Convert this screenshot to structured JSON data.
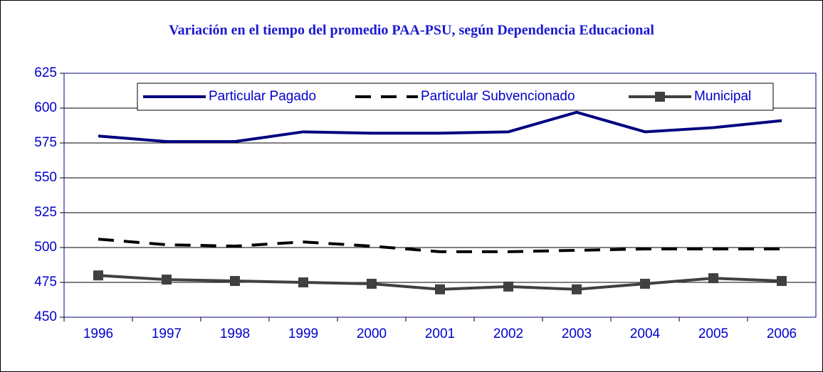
{
  "chart_data": {
    "type": "line",
    "title": "Variación en el tiempo del promedio PAA-PSU, según Dependencia Educacional",
    "categories": [
      "1996",
      "1997",
      "1998",
      "1999",
      "2000",
      "2001",
      "2002",
      "2003",
      "2004",
      "2005",
      "2006"
    ],
    "series": [
      {
        "name": "Particular Pagado",
        "color": "#000080",
        "dash": "solid",
        "marker": "none",
        "values": [
          580,
          576,
          576,
          583,
          582,
          582,
          583,
          597,
          583,
          586,
          591
        ]
      },
      {
        "name": "Particular Subvencionado",
        "color": "#000000",
        "dash": "dashed",
        "marker": "none",
        "values": [
          506,
          502,
          501,
          504,
          501,
          497,
          497,
          498,
          499,
          499,
          499
        ]
      },
      {
        "name": "Municipal",
        "color": "#404040",
        "dash": "solid",
        "marker": "square",
        "values": [
          480,
          477,
          476,
          475,
          474,
          470,
          472,
          470,
          474,
          478,
          476
        ]
      }
    ],
    "ylim": [
      450,
      625
    ],
    "yticks": [
      450,
      475,
      500,
      525,
      550,
      575,
      600,
      625
    ],
    "grid": true,
    "legend": "top"
  }
}
